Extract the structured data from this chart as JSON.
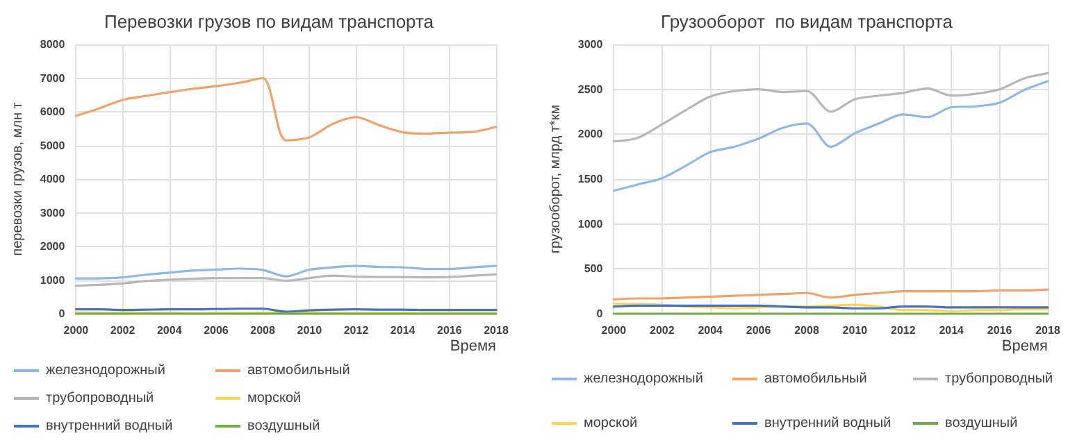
{
  "chart_data": [
    {
      "type": "line",
      "title": "Перевозки грузов по видам транспорта",
      "xlabel": "Время",
      "ylabel": "перевозки грузов, млн т",
      "x": [
        2000,
        2001,
        2002,
        2003,
        2004,
        2005,
        2006,
        2007,
        2008,
        2009,
        2010,
        2011,
        2012,
        2013,
        2014,
        2015,
        2016,
        2017,
        2018
      ],
      "xlim": [
        2000,
        2018
      ],
      "xticks": [
        2000,
        2002,
        2004,
        2006,
        2008,
        2010,
        2012,
        2014,
        2016,
        2018
      ],
      "ylim": [
        0,
        8000
      ],
      "yticks": [
        0,
        1000,
        2000,
        3000,
        4000,
        5000,
        6000,
        7000,
        8000
      ],
      "grid": true,
      "legend": "bottom",
      "marker": "none",
      "line_style": "solid",
      "series": [
        {
          "name": "железнодорожный",
          "color": "#8fb8e8",
          "values": [
            1050,
            1050,
            1080,
            1160,
            1220,
            1280,
            1310,
            1340,
            1300,
            1110,
            1310,
            1380,
            1420,
            1390,
            1380,
            1330,
            1330,
            1380,
            1420
          ]
        },
        {
          "name": "автомобильный",
          "color": "#f4a06a",
          "values": [
            5880,
            6100,
            6350,
            6470,
            6580,
            6680,
            6760,
            6860,
            7000,
            5150,
            5240,
            5640,
            5840,
            5600,
            5390,
            5350,
            5380,
            5400,
            5550
          ]
        },
        {
          "name": "трубопроводный",
          "color": "#b7b7b7",
          "values": [
            830,
            860,
            900,
            970,
            1010,
            1040,
            1060,
            1060,
            1060,
            980,
            1060,
            1130,
            1100,
            1090,
            1090,
            1080,
            1090,
            1130,
            1170
          ]
        },
        {
          "name": "морской",
          "color": "#ffd54f",
          "values": [
            40,
            30,
            30,
            30,
            30,
            20,
            20,
            20,
            30,
            30,
            30,
            30,
            20,
            20,
            20,
            20,
            20,
            20,
            20
          ]
        },
        {
          "name": "внутренний водный",
          "color": "#4472c4",
          "values": [
            130,
            130,
            110,
            120,
            130,
            130,
            140,
            150,
            150,
            60,
            100,
            120,
            130,
            120,
            120,
            110,
            110,
            110,
            110
          ]
        },
        {
          "name": "воздушный",
          "color": "#70ad47",
          "values": [
            0,
            0,
            0,
            0,
            0,
            0,
            0,
            0,
            0,
            0,
            0,
            0,
            0,
            0,
            0,
            0,
            0,
            0,
            0
          ]
        }
      ]
    },
    {
      "type": "line",
      "title": "Грузооборот  по видам транспорта",
      "xlabel": "Время",
      "ylabel": "грузооборот, млрд т*км",
      "x": [
        2000,
        2001,
        2002,
        2003,
        2004,
        2005,
        2006,
        2007,
        2008,
        2009,
        2010,
        2011,
        2012,
        2013,
        2014,
        2015,
        2016,
        2017,
        2018
      ],
      "xlim": [
        2000,
        2018
      ],
      "xticks": [
        2000,
        2002,
        2004,
        2006,
        2008,
        2010,
        2012,
        2014,
        2016,
        2018
      ],
      "ylim": [
        0,
        3000
      ],
      "yticks": [
        0,
        500,
        1000,
        1500,
        2000,
        2500,
        3000
      ],
      "grid": true,
      "legend": "bottom",
      "marker": "none",
      "line_style": "solid",
      "series": [
        {
          "name": "железнодорожный",
          "color": "#8fb8e8",
          "values": [
            1370,
            1440,
            1510,
            1650,
            1800,
            1860,
            1950,
            2070,
            2120,
            1860,
            2010,
            2120,
            2220,
            2190,
            2300,
            2310,
            2350,
            2490,
            2590
          ]
        },
        {
          "name": "автомобильный",
          "color": "#f4a06a",
          "values": [
            160,
            170,
            170,
            180,
            190,
            200,
            210,
            220,
            230,
            180,
            210,
            230,
            250,
            250,
            250,
            250,
            260,
            260,
            270
          ]
        },
        {
          "name": "трубопроводный",
          "color": "#b7b7b7",
          "values": [
            1920,
            1960,
            2110,
            2270,
            2420,
            2480,
            2500,
            2470,
            2480,
            2250,
            2390,
            2430,
            2460,
            2510,
            2430,
            2450,
            2500,
            2620,
            2680
          ]
        },
        {
          "name": "морской",
          "color": "#ffd54f",
          "values": [
            110,
            110,
            100,
            80,
            70,
            60,
            70,
            80,
            80,
            90,
            100,
            80,
            40,
            40,
            30,
            40,
            40,
            50,
            50
          ]
        },
        {
          "name": "внутренний водный",
          "color": "#4472c4",
          "values": [
            80,
            90,
            90,
            90,
            90,
            90,
            90,
            80,
            70,
            70,
            60,
            60,
            80,
            80,
            70,
            70,
            70,
            70,
            70
          ]
        },
        {
          "name": "воздушный",
          "color": "#70ad47",
          "values": [
            0,
            0,
            0,
            0,
            0,
            0,
            0,
            0,
            0,
            0,
            0,
            0,
            0,
            0,
            0,
            0,
            0,
            0,
            0
          ]
        }
      ]
    }
  ]
}
